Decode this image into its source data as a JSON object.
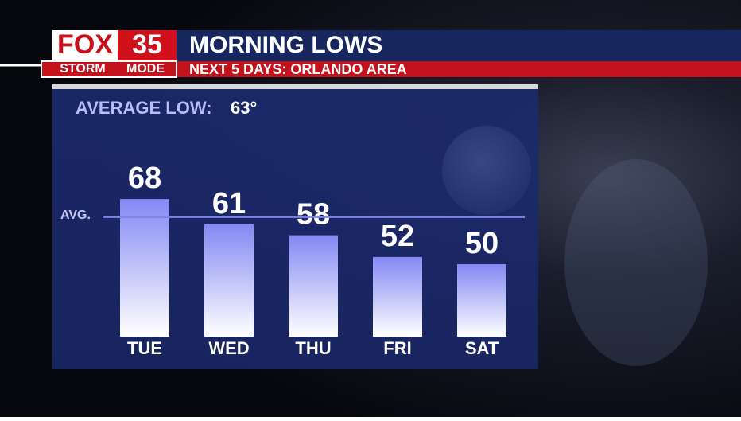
{
  "header": {
    "logo_top": "FOX",
    "logo_number": "35",
    "logo_bottom_left": "STORM",
    "logo_bottom_right": "MODE",
    "title": "MORNING LOWS",
    "subtitle": "NEXT 5 DAYS: ORLANDO AREA"
  },
  "chart_data": {
    "type": "bar",
    "annotation": "AVERAGE LOW:",
    "average": {
      "value": 63,
      "label": "63°"
    },
    "average_line_label": "AVG.",
    "categories": [
      "TUE",
      "WED",
      "THU",
      "FRI",
      "SAT"
    ],
    "values": [
      68,
      61,
      58,
      52,
      50
    ],
    "ylim": [
      30,
      70
    ],
    "color_top": "#8488f3",
    "color_bottom": "#ffffff",
    "average_line_color": "#7f84e6"
  }
}
